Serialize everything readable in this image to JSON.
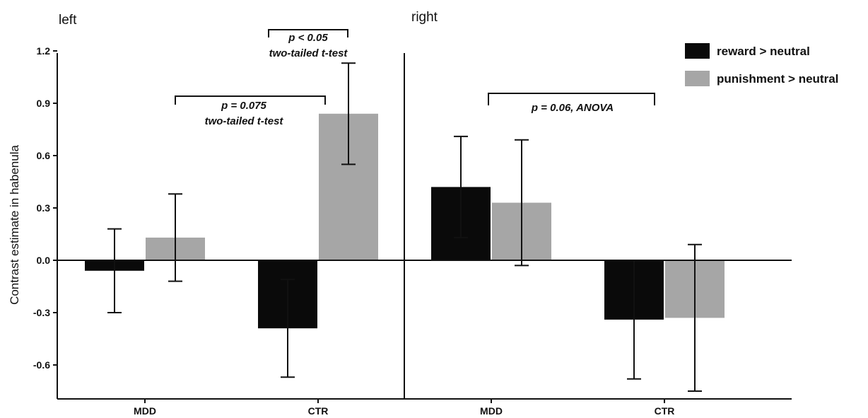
{
  "chart_data": {
    "type": "bar",
    "ylabel": "Contrast estimate in habenula",
    "xlabel": "",
    "ylim": [
      -0.8,
      1.2
    ],
    "yticks": [
      "1.2",
      "0.9",
      "0.6",
      "0.3",
      "0.0",
      "-0.3",
      "-0.6"
    ],
    "ytick_values": [
      1.2,
      0.9,
      0.6,
      0.3,
      0.0,
      -0.3,
      -0.6
    ],
    "grid": false,
    "legend_position": "top-right",
    "series": [
      {
        "name": "reward > neutral",
        "color": "#0a0a0a"
      },
      {
        "name": "punishment > neutral",
        "color": "#a6a6a6"
      }
    ],
    "panels": [
      {
        "label": "left",
        "categories": [
          "MDD",
          "CTR"
        ],
        "values": [
          [
            -0.06,
            0.13
          ],
          [
            -0.39,
            0.84
          ]
        ],
        "errors": [
          [
            0.24,
            0.25
          ],
          [
            0.28,
            0.29
          ]
        ]
      },
      {
        "label": "right",
        "categories": [
          "MDD",
          "CTR"
        ],
        "values": [
          [
            0.42,
            0.33
          ],
          [
            -0.34,
            -0.33
          ]
        ],
        "errors": [
          [
            0.29,
            0.36
          ],
          [
            0.34,
            0.42
          ]
        ]
      }
    ],
    "annotations": [
      {
        "lines": [
          "p < 0.05",
          "two-tailed t-test"
        ]
      },
      {
        "lines": [
          "p = 0.075",
          "two-tailed t-test"
        ]
      },
      {
        "lines": [
          "p = 0.06, ANOVA"
        ]
      }
    ]
  }
}
